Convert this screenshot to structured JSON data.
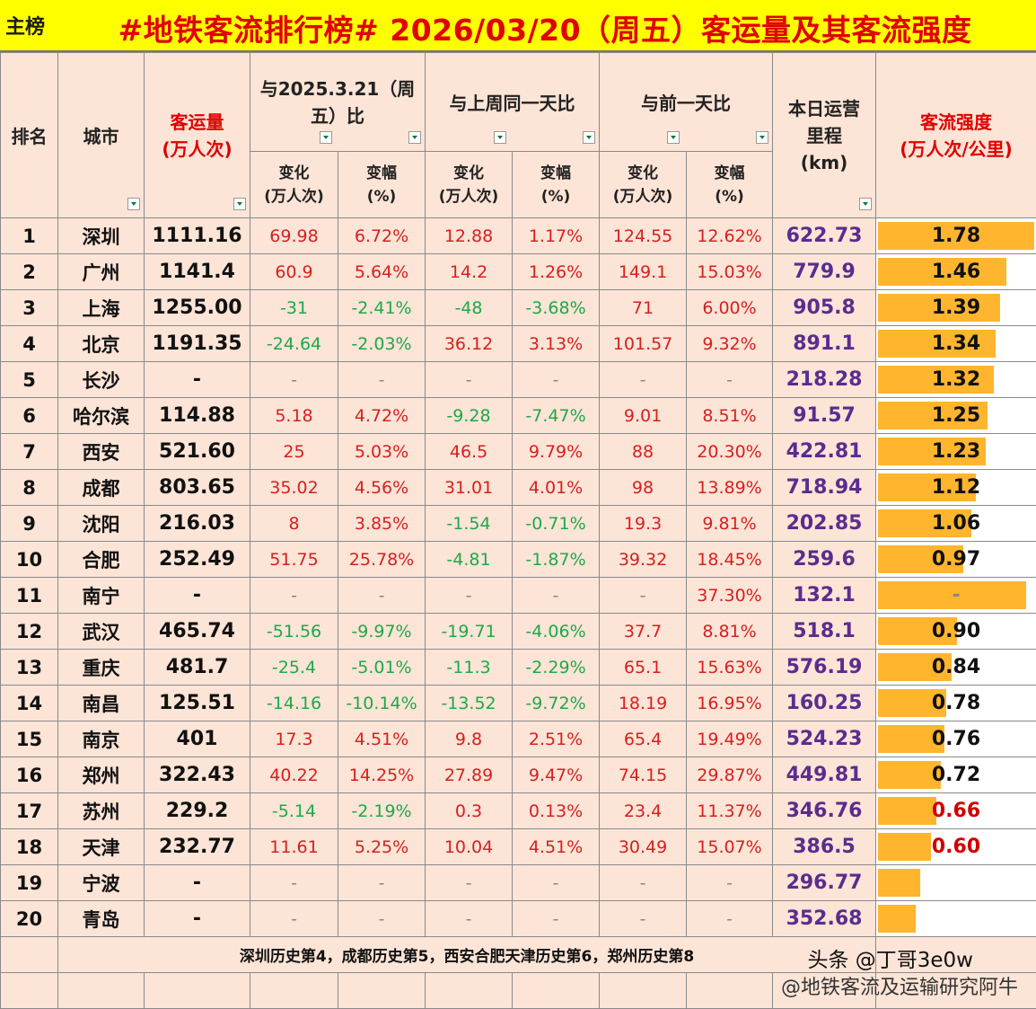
{
  "header": {
    "tag": "主榜",
    "title": "#地铁客流排行榜# 2026/03/20（周五）客运量及其客流强度"
  },
  "columns": {
    "rank": "排名",
    "city": "城市",
    "ridership_l1": "客运量",
    "ridership_l2": "(万人次)",
    "yoy_l1": "与2025.3.21（周",
    "yoy_l2": "五）比",
    "wow": "与上周同一天比",
    "dod": "与前一天比",
    "length_l1": "本日运营",
    "length_l2": "里程",
    "length_l3": "(km)",
    "intensity_l1": "客流强度",
    "intensity_l2": "(万人次/公里)",
    "change_l1": "变化",
    "change_l2": "(万人次)",
    "pct_l1": "变幅",
    "pct_l2": "(%)"
  },
  "colors": {
    "title_bg": "#ffff00",
    "title_text": "#e00000",
    "positive": "#d62020",
    "negative": "#1ea84a",
    "length_text": "#5b2c8f",
    "bar": "#ffb52e",
    "row_bg": "#fce4d6"
  },
  "chart_data": {
    "type": "table",
    "rows": [
      {
        "rank": "1",
        "city": "深圳",
        "ridership": "1111.16",
        "yoy_chg": "69.98",
        "yoy_pct": "6.72%",
        "wow_chg": "12.88",
        "wow_pct": "1.17%",
        "dod_chg": "124.55",
        "dod_pct": "12.62%",
        "length": "622.73",
        "intensity": "1.78"
      },
      {
        "rank": "2",
        "city": "广州",
        "ridership": "1141.4",
        "yoy_chg": "60.9",
        "yoy_pct": "5.64%",
        "wow_chg": "14.2",
        "wow_pct": "1.26%",
        "dod_chg": "149.1",
        "dod_pct": "15.03%",
        "length": "779.9",
        "intensity": "1.46"
      },
      {
        "rank": "3",
        "city": "上海",
        "ridership": "1255.00",
        "yoy_chg": "-31",
        "yoy_pct": "-2.41%",
        "wow_chg": "-48",
        "wow_pct": "-3.68%",
        "dod_chg": "71",
        "dod_pct": "6.00%",
        "length": "905.8",
        "intensity": "1.39"
      },
      {
        "rank": "4",
        "city": "北京",
        "ridership": "1191.35",
        "yoy_chg": "-24.64",
        "yoy_pct": "-2.03%",
        "wow_chg": "36.12",
        "wow_pct": "3.13%",
        "dod_chg": "101.57",
        "dod_pct": "9.32%",
        "length": "891.1",
        "intensity": "1.34"
      },
      {
        "rank": "5",
        "city": "长沙",
        "ridership": "-",
        "yoy_chg": "-",
        "yoy_pct": "-",
        "wow_chg": "-",
        "wow_pct": "-",
        "dod_chg": "-",
        "dod_pct": "-",
        "length": "218.28",
        "intensity": "1.32"
      },
      {
        "rank": "6",
        "city": "哈尔滨",
        "ridership": "114.88",
        "yoy_chg": "5.18",
        "yoy_pct": "4.72%",
        "wow_chg": "-9.28",
        "wow_pct": "-7.47%",
        "dod_chg": "9.01",
        "dod_pct": "8.51%",
        "length": "91.57",
        "intensity": "1.25"
      },
      {
        "rank": "7",
        "city": "西安",
        "ridership": "521.60",
        "yoy_chg": "25",
        "yoy_pct": "5.03%",
        "wow_chg": "46.5",
        "wow_pct": "9.79%",
        "dod_chg": "88",
        "dod_pct": "20.30%",
        "length": "422.81",
        "intensity": "1.23"
      },
      {
        "rank": "8",
        "city": "成都",
        "ridership": "803.65",
        "yoy_chg": "35.02",
        "yoy_pct": "4.56%",
        "wow_chg": "31.01",
        "wow_pct": "4.01%",
        "dod_chg": "98",
        "dod_pct": "13.89%",
        "length": "718.94",
        "intensity": "1.12"
      },
      {
        "rank": "9",
        "city": "沈阳",
        "ridership": "216.03",
        "yoy_chg": "8",
        "yoy_pct": "3.85%",
        "wow_chg": "-1.54",
        "wow_pct": "-0.71%",
        "dod_chg": "19.3",
        "dod_pct": "9.81%",
        "length": "202.85",
        "intensity": "1.06"
      },
      {
        "rank": "10",
        "city": "合肥",
        "ridership": "252.49",
        "yoy_chg": "51.75",
        "yoy_pct": "25.78%",
        "wow_chg": "-4.81",
        "wow_pct": "-1.87%",
        "dod_chg": "39.32",
        "dod_pct": "18.45%",
        "length": "259.6",
        "intensity": "0.97"
      },
      {
        "rank": "11",
        "city": "南宁",
        "ridership": "-",
        "yoy_chg": "-",
        "yoy_pct": "-",
        "wow_chg": "-",
        "wow_pct": "-",
        "dod_chg": "-",
        "dod_pct": "37.30%",
        "length": "132.1",
        "intensity": "-",
        "intensity_level": 0.95
      },
      {
        "rank": "12",
        "city": "武汉",
        "ridership": "465.74",
        "yoy_chg": "-51.56",
        "yoy_pct": "-9.97%",
        "wow_chg": "-19.71",
        "wow_pct": "-4.06%",
        "dod_chg": "37.7",
        "dod_pct": "8.81%",
        "length": "518.1",
        "intensity": "0.90"
      },
      {
        "rank": "13",
        "city": "重庆",
        "ridership": "481.7",
        "yoy_chg": "-25.4",
        "yoy_pct": "-5.01%",
        "wow_chg": "-11.3",
        "wow_pct": "-2.29%",
        "dod_chg": "65.1",
        "dod_pct": "15.63%",
        "length": "576.19",
        "intensity": "0.84"
      },
      {
        "rank": "14",
        "city": "南昌",
        "ridership": "125.51",
        "yoy_chg": "-14.16",
        "yoy_pct": "-10.14%",
        "wow_chg": "-13.52",
        "wow_pct": "-9.72%",
        "dod_chg": "18.19",
        "dod_pct": "16.95%",
        "length": "160.25",
        "intensity": "0.78"
      },
      {
        "rank": "15",
        "city": "南京",
        "ridership": "401",
        "yoy_chg": "17.3",
        "yoy_pct": "4.51%",
        "wow_chg": "9.8",
        "wow_pct": "2.51%",
        "dod_chg": "65.4",
        "dod_pct": "19.49%",
        "length": "524.23",
        "intensity": "0.76"
      },
      {
        "rank": "16",
        "city": "郑州",
        "ridership": "322.43",
        "yoy_chg": "40.22",
        "yoy_pct": "14.25%",
        "wow_chg": "27.89",
        "wow_pct": "9.47%",
        "dod_chg": "74.15",
        "dod_pct": "29.87%",
        "length": "449.81",
        "intensity": "0.72"
      },
      {
        "rank": "17",
        "city": "苏州",
        "ridership": "229.2",
        "yoy_chg": "-5.14",
        "yoy_pct": "-2.19%",
        "wow_chg": "0.3",
        "wow_pct": "0.13%",
        "dod_chg": "23.4",
        "dod_pct": "11.37%",
        "length": "346.76",
        "intensity": "0.66"
      },
      {
        "rank": "18",
        "city": "天津",
        "ridership": "232.77",
        "yoy_chg": "11.61",
        "yoy_pct": "5.25%",
        "wow_chg": "10.04",
        "wow_pct": "4.51%",
        "dod_chg": "30.49",
        "dod_pct": "15.07%",
        "length": "386.5",
        "intensity": "0.60"
      },
      {
        "rank": "19",
        "city": "宁波",
        "ridership": "-",
        "yoy_chg": "-",
        "yoy_pct": "-",
        "wow_chg": "-",
        "wow_pct": "-",
        "dod_chg": "-",
        "dod_pct": "-",
        "length": "296.77",
        "intensity": "",
        "intensity_level": 0.27
      },
      {
        "rank": "20",
        "city": "青岛",
        "ridership": "-",
        "yoy_chg": "-",
        "yoy_pct": "-",
        "wow_chg": "-",
        "wow_pct": "-",
        "dod_chg": "-",
        "dod_pct": "-",
        "length": "352.68",
        "intensity": "",
        "intensity_level": 0.24
      }
    ]
  },
  "footer": {
    "note": "深圳历史第4，成都历史第5，西安合肥天津历史第6，郑州历史第8",
    "watermark_source": "@地铁客流及运输研究阿牛",
    "watermark_author": "头条 @丁哥3e0w"
  }
}
